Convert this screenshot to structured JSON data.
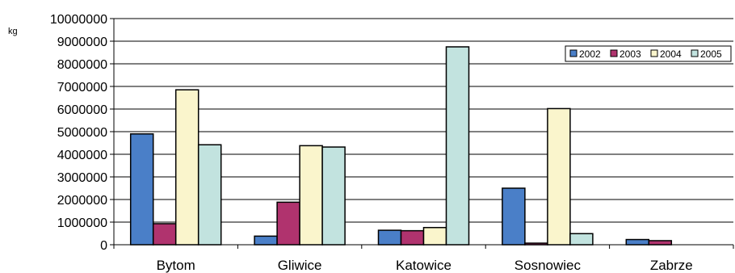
{
  "chart_data": {
    "type": "bar",
    "title": "",
    "xlabel": "",
    "ylabel": "kg",
    "ylim": [
      0,
      10000000
    ],
    "yticks": [
      0,
      1000000,
      2000000,
      3000000,
      4000000,
      5000000,
      6000000,
      7000000,
      8000000,
      9000000,
      10000000
    ],
    "grid": true,
    "legend_position": "top-right",
    "categories": [
      "Bytom",
      "Gliwice",
      "Katowice",
      "Sosnowiec",
      "Zabrze"
    ],
    "series": [
      {
        "name": "2002",
        "color": "#4a7fc8",
        "values": [
          4900000,
          380000,
          640000,
          2500000,
          230000
        ]
      },
      {
        "name": "2003",
        "color": "#b0336e",
        "values": [
          930000,
          1880000,
          620000,
          70000,
          180000
        ]
      },
      {
        "name": "2004",
        "color": "#faf5cc",
        "values": [
          6850000,
          4380000,
          760000,
          6020000,
          0
        ]
      },
      {
        "name": "2005",
        "color": "#c2e3df",
        "values": [
          4420000,
          4320000,
          8750000,
          490000,
          0
        ]
      }
    ]
  }
}
